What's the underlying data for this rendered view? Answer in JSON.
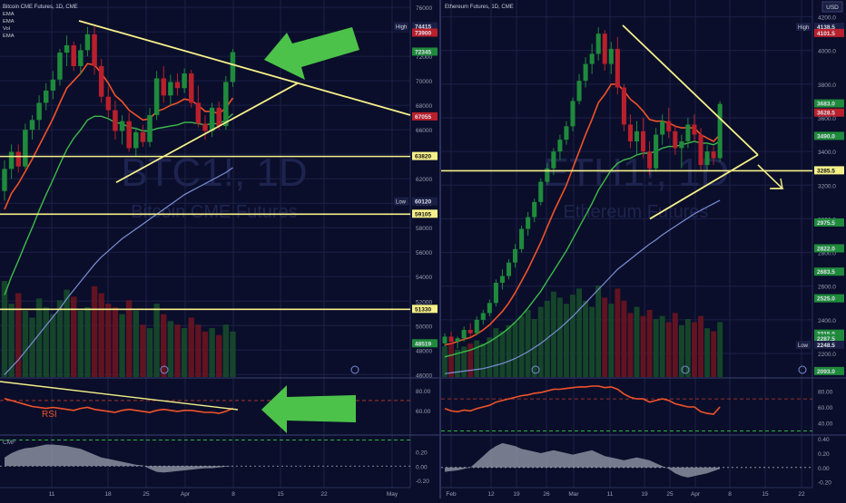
{
  "colors": {
    "background": "#0a0e2a",
    "grid": "#1c2148",
    "up": "#1f8a3c",
    "down": "#b8202c",
    "ema_fast": "#f0532a",
    "ema_mid": "#3dbb4a",
    "ema_slow": "#7b8fd6",
    "trendline": "#f6f08a",
    "arrow": "#4cc24a",
    "rsi": "#f0532a",
    "cmf": "#9aa0ad",
    "price_tag_red": "#b8202c",
    "price_tag_green": "#1f8a3c",
    "price_tag_yellow": "#f6f08a"
  },
  "left_panel": {
    "legend": [
      "Bitcoin CME Futures, 1D, CME",
      "EMA",
      "EMA",
      "Vol",
      "EMA"
    ],
    "watermark_symbol": "BTC1!, 1D",
    "watermark_name": "Bitcoin CME Futures",
    "rsi_label": "RSI",
    "cmf_label": "CMF",
    "y_ticks": [
      "76000",
      "74000",
      "72000",
      "70000",
      "68000",
      "66000",
      "64000",
      "62000",
      "60000",
      "58000",
      "56000",
      "54000",
      "52000",
      "50000",
      "48000",
      "46000"
    ],
    "tags": [
      {
        "label": "High",
        "value": "74415",
        "y": 74415,
        "kind": "label"
      },
      {
        "label": "",
        "value": "73900",
        "y": 73900,
        "kind": "red"
      },
      {
        "label": "",
        "value": "72345",
        "y": 72345,
        "kind": "green"
      },
      {
        "label": "",
        "value": "67055",
        "y": 67055,
        "kind": "red"
      },
      {
        "label": "",
        "value": "63820",
        "y": 63820,
        "kind": "yellow"
      },
      {
        "label": "Low",
        "value": "60120",
        "y": 60120,
        "kind": "label"
      },
      {
        "label": "",
        "value": "59105",
        "y": 59105,
        "kind": "yellow"
      },
      {
        "label": "",
        "value": "51330",
        "y": 51330,
        "kind": "yellow"
      },
      {
        "label": "",
        "value": "48519",
        "y": 48519,
        "kind": "green"
      }
    ],
    "x_ticks": [
      "11",
      "18",
      "25",
      "Apr",
      "8",
      "15",
      "22",
      "May"
    ],
    "rsi_ticks": [
      "80.00",
      "60.00"
    ],
    "cmf_ticks": [
      "0.20",
      "0.00",
      "-0.20"
    ]
  },
  "right_panel": {
    "legend": "Ethereum Futures, 1D, CME",
    "currency": "USD",
    "watermark_symbol": "ETH1!, 1D",
    "watermark_name": "Ethereum Futures",
    "y_ticks": [
      "4200.0",
      "4000.0",
      "3800.0",
      "3600.0",
      "3400.0",
      "3200.0",
      "3000.0",
      "2800.0",
      "2600.0",
      "2400.0",
      "2200.0",
      "2000.0"
    ],
    "tags": [
      {
        "label": "High",
        "value": "4138.5",
        "y": 4138.5,
        "kind": "label"
      },
      {
        "label": "",
        "value": "4101.5",
        "y": 4101.5,
        "kind": "red"
      },
      {
        "label": "",
        "value": "3683.0",
        "y": 3683.0,
        "kind": "green"
      },
      {
        "label": "",
        "value": "3628.5",
        "y": 3628.5,
        "kind": "red"
      },
      {
        "label": "",
        "value": "3490.0",
        "y": 3490.0,
        "kind": "green"
      },
      {
        "label": "",
        "value": "3285.5",
        "y": 3285.5,
        "kind": "yellow"
      },
      {
        "label": "",
        "value": "2975.5",
        "y": 2975.5,
        "kind": "green"
      },
      {
        "label": "",
        "value": "2822.0",
        "y": 2822.0,
        "kind": "green"
      },
      {
        "label": "",
        "value": "2683.5",
        "y": 2683.5,
        "kind": "green"
      },
      {
        "label": "",
        "value": "2525.0",
        "y": 2525.0,
        "kind": "green"
      },
      {
        "label": "",
        "value": "2315.0",
        "y": 2315.0,
        "kind": "green"
      },
      {
        "label": "",
        "value": "2287.5",
        "y": 2287.5,
        "kind": "green"
      },
      {
        "label": "Low",
        "value": "2248.5",
        "y": 2248.5,
        "kind": "label"
      },
      {
        "label": "",
        "value": "2093.0",
        "y": 2093.0,
        "kind": "green"
      }
    ],
    "x_ticks": [
      "Feb",
      "12",
      "19",
      "26",
      "Mar",
      "11",
      "19",
      "25",
      "Apr",
      "8",
      "15",
      "22"
    ],
    "rsi_ticks": [
      "80.00",
      "60.00",
      "40.00"
    ],
    "cmf_ticks": [
      "0.40",
      "0.20",
      "0.00",
      "-0.20"
    ]
  },
  "chart_data": [
    {
      "type": "candlestick",
      "title": "Bitcoin CME Futures, 1D, CME",
      "ylim": [
        45800,
        76600
      ],
      "candles": [
        [
          61000,
          63500,
          60200,
          62800
        ],
        [
          62800,
          64800,
          62000,
          64200
        ],
        [
          64200,
          64800,
          62500,
          63000
        ],
        [
          63000,
          66500,
          62800,
          66000
        ],
        [
          66000,
          67200,
          65200,
          66800
        ],
        [
          66800,
          68800,
          66000,
          68200
        ],
        [
          68200,
          69800,
          67600,
          69200
        ],
        [
          69200,
          70800,
          68500,
          70100
        ],
        [
          70100,
          72600,
          69600,
          72300
        ],
        [
          72300,
          73700,
          71200,
          72900
        ],
        [
          72900,
          73200,
          70800,
          71200
        ],
        [
          71200,
          73000,
          70500,
          72500
        ],
        [
          72500,
          74400,
          72000,
          73800
        ],
        [
          73800,
          74415,
          70500,
          71200
        ],
        [
          71200,
          71800,
          68200,
          68700
        ],
        [
          68700,
          69500,
          67000,
          67600
        ],
        [
          67600,
          68400,
          65200,
          65900
        ],
        [
          65900,
          67200,
          64800,
          66700
        ],
        [
          66700,
          67400,
          64200,
          64500
        ],
        [
          64500,
          66200,
          63800,
          65800
        ],
        [
          65800,
          66400,
          64600,
          65000
        ],
        [
          65000,
          67800,
          64600,
          67200
        ],
        [
          67200,
          70800,
          66800,
          70200
        ],
        [
          70200,
          71200,
          68200,
          68800
        ],
        [
          68800,
          70500,
          68000,
          69900
        ],
        [
          69900,
          70600,
          68800,
          69400
        ],
        [
          69400,
          71000,
          69000,
          70600
        ],
        [
          70600,
          70900,
          67800,
          68200
        ],
        [
          68200,
          69600,
          66200,
          66500
        ],
        [
          66500,
          67200,
          65200,
          65900
        ],
        [
          65900,
          68200,
          65400,
          67800
        ],
        [
          67800,
          68300,
          66000,
          66300
        ],
        [
          66300,
          70400,
          66000,
          69900
        ],
        [
          69900,
          72600,
          69500,
          72345
        ]
      ],
      "ema_fast": [
        59500,
        60800,
        61600,
        62600,
        63600,
        64700,
        65800,
        66900,
        68200,
        69400,
        70000,
        70600,
        71400,
        71300,
        70600,
        69800,
        68800,
        68300,
        67600,
        67200,
        66800,
        66900,
        67500,
        67700,
        68000,
        68200,
        68500,
        68400,
        68000,
        67500,
        67500,
        67300,
        67800,
        68600
      ],
      "ema_mid": [
        52500,
        54000,
        55300,
        56700,
        58000,
        59400,
        60700,
        61900,
        63200,
        64400,
        65300,
        66000,
        66800,
        67100,
        67100,
        66900,
        66600,
        66500,
        66200,
        66100,
        65900,
        65900,
        66100,
        66200,
        66300,
        66400,
        66600,
        66600,
        66500,
        66400,
        66500,
        66500,
        66800,
        67300
      ],
      "ema_slow": [
        46000,
        46600,
        47200,
        47900,
        48600,
        49300,
        50000,
        50700,
        51400,
        52200,
        52900,
        53600,
        54300,
        55000,
        55600,
        56100,
        56600,
        57100,
        57500,
        57900,
        58300,
        58700,
        59100,
        59500,
        59900,
        60300,
        60700,
        61000,
        61300,
        61600,
        61900,
        62200,
        62500,
        62900
      ],
      "volume": [
        55,
        42,
        48,
        38,
        34,
        45,
        40,
        36,
        44,
        50,
        46,
        38,
        40,
        52,
        48,
        42,
        40,
        36,
        44,
        38,
        30,
        28,
        42,
        36,
        32,
        30,
        28,
        34,
        30,
        26,
        28,
        24,
        30,
        26
      ],
      "rsi": [
        72,
        70,
        68,
        66,
        64,
        63,
        62,
        63,
        62,
        61,
        60,
        62,
        63,
        61,
        60,
        59,
        58,
        60,
        61,
        60,
        59,
        58,
        60,
        61,
        60,
        59,
        60,
        60,
        59,
        58,
        58,
        57,
        59,
        62
      ],
      "cmf": [
        0.12,
        0.18,
        0.22,
        0.25,
        0.26,
        0.28,
        0.3,
        0.3,
        0.29,
        0.28,
        0.26,
        0.24,
        0.2,
        0.16,
        0.12,
        0.1,
        0.08,
        0.06,
        0.04,
        0.02,
        0.01,
        -0.04,
        -0.08,
        -0.09,
        -0.08,
        -0.07,
        -0.06,
        -0.05,
        -0.04,
        -0.03,
        -0.03,
        -0.02,
        -0.01,
        0.0
      ]
    },
    {
      "type": "candlestick",
      "title": "Ethereum Futures, 1D, CME",
      "ylim": [
        2060,
        4300
      ],
      "candles": [
        [
          2260,
          2320,
          2240,
          2300
        ],
        [
          2300,
          2330,
          2250,
          2270
        ],
        [
          2270,
          2300,
          2230,
          2290
        ],
        [
          2290,
          2360,
          2270,
          2340
        ],
        [
          2340,
          2380,
          2300,
          2320
        ],
        [
          2320,
          2420,
          2310,
          2400
        ],
        [
          2400,
          2460,
          2370,
          2440
        ],
        [
          2440,
          2520,
          2420,
          2500
        ],
        [
          2500,
          2640,
          2480,
          2620
        ],
        [
          2620,
          2700,
          2580,
          2660
        ],
        [
          2660,
          2760,
          2640,
          2740
        ],
        [
          2740,
          2850,
          2710,
          2820
        ],
        [
          2820,
          2960,
          2800,
          2940
        ],
        [
          2940,
          3040,
          2900,
          3010
        ],
        [
          3010,
          3120,
          2980,
          3100
        ],
        [
          3100,
          3240,
          3080,
          3220
        ],
        [
          3220,
          3330,
          3200,
          3300
        ],
        [
          3300,
          3420,
          3260,
          3400
        ],
        [
          3400,
          3500,
          3350,
          3470
        ],
        [
          3470,
          3580,
          3440,
          3550
        ],
        [
          3550,
          3720,
          3520,
          3700
        ],
        [
          3700,
          3860,
          3680,
          3820
        ],
        [
          3820,
          3960,
          3780,
          3920
        ],
        [
          3920,
          4040,
          3860,
          3980
        ],
        [
          3980,
          4138,
          3940,
          4100
        ],
        [
          4100,
          4120,
          3880,
          3920
        ],
        [
          3920,
          4050,
          3860,
          4010
        ],
        [
          4010,
          4080,
          3740,
          3780
        ],
        [
          3780,
          3800,
          3520,
          3560
        ],
        [
          3560,
          3620,
          3420,
          3460
        ],
        [
          3460,
          3580,
          3380,
          3520
        ],
        [
          3520,
          3600,
          3360,
          3400
        ],
        [
          3400,
          3460,
          3260,
          3300
        ],
        [
          3300,
          3540,
          3280,
          3500
        ],
        [
          3500,
          3620,
          3440,
          3580
        ],
        [
          3580,
          3660,
          3480,
          3520
        ],
        [
          3520,
          3560,
          3380,
          3420
        ],
        [
          3420,
          3500,
          3300,
          3460
        ],
        [
          3460,
          3600,
          3420,
          3560
        ],
        [
          3560,
          3620,
          3460,
          3500
        ],
        [
          3500,
          3540,
          3290,
          3320
        ],
        [
          3320,
          3440,
          3290,
          3400
        ],
        [
          3400,
          3430,
          3320,
          3360
        ],
        [
          3360,
          3700,
          3340,
          3683
        ]
      ],
      "ema_fast": [
        2250,
        2260,
        2270,
        2285,
        2295,
        2315,
        2340,
        2370,
        2410,
        2450,
        2500,
        2560,
        2630,
        2700,
        2780,
        2860,
        2950,
        3040,
        3120,
        3200,
        3300,
        3400,
        3500,
        3590,
        3690,
        3740,
        3800,
        3800,
        3760,
        3710,
        3680,
        3640,
        3590,
        3580,
        3580,
        3570,
        3550,
        3540,
        3540,
        3540,
        3500,
        3480,
        3460,
        3500
      ],
      "ema_mid": [
        2180,
        2190,
        2200,
        2210,
        2220,
        2235,
        2250,
        2270,
        2295,
        2320,
        2350,
        2385,
        2425,
        2470,
        2520,
        2570,
        2630,
        2690,
        2750,
        2810,
        2880,
        2950,
        3020,
        3090,
        3170,
        3230,
        3290,
        3330,
        3350,
        3360,
        3380,
        3390,
        3390,
        3400,
        3420,
        3430,
        3430,
        3440,
        3450,
        3460,
        3450,
        3450,
        3440,
        3460
      ],
      "ema_slow": [
        2080,
        2085,
        2090,
        2095,
        2100,
        2105,
        2110,
        2120,
        2130,
        2140,
        2155,
        2170,
        2190,
        2210,
        2235,
        2260,
        2290,
        2320,
        2350,
        2385,
        2420,
        2460,
        2500,
        2540,
        2580,
        2620,
        2660,
        2700,
        2730,
        2760,
        2790,
        2820,
        2850,
        2875,
        2905,
        2930,
        2955,
        2980,
        3005,
        3030,
        3050,
        3070,
        3090,
        3110
      ],
      "volume": [
        20,
        22,
        18,
        20,
        22,
        24,
        22,
        26,
        32,
        30,
        34,
        36,
        40,
        44,
        38,
        46,
        50,
        56,
        52,
        48,
        54,
        58,
        50,
        46,
        60,
        52,
        48,
        58,
        50,
        42,
        46,
        40,
        44,
        38,
        40,
        36,
        42,
        34,
        38,
        36,
        40,
        32,
        30,
        36
      ],
      "rsi": [
        58,
        55,
        54,
        56,
        55,
        58,
        60,
        62,
        66,
        68,
        70,
        72,
        74,
        75,
        77,
        78,
        80,
        82,
        82,
        83,
        84,
        85,
        85,
        86,
        86,
        84,
        85,
        82,
        76,
        72,
        70,
        70,
        66,
        68,
        70,
        68,
        64,
        62,
        60,
        60,
        54,
        52,
        51,
        60
      ],
      "cmf": [
        -0.06,
        -0.05,
        -0.04,
        -0.02,
        0.0,
        0.08,
        0.16,
        0.24,
        0.3,
        0.34,
        0.32,
        0.3,
        0.26,
        0.24,
        0.22,
        0.2,
        0.22,
        0.24,
        0.22,
        0.2,
        0.18,
        0.2,
        0.22,
        0.24,
        0.2,
        0.16,
        0.14,
        0.12,
        0.1,
        0.12,
        0.14,
        0.12,
        0.1,
        0.06,
        0.02,
        -0.02,
        -0.08,
        -0.12,
        -0.14,
        -0.12,
        -0.1,
        -0.08,
        -0.05,
        -0.02
      ]
    }
  ]
}
